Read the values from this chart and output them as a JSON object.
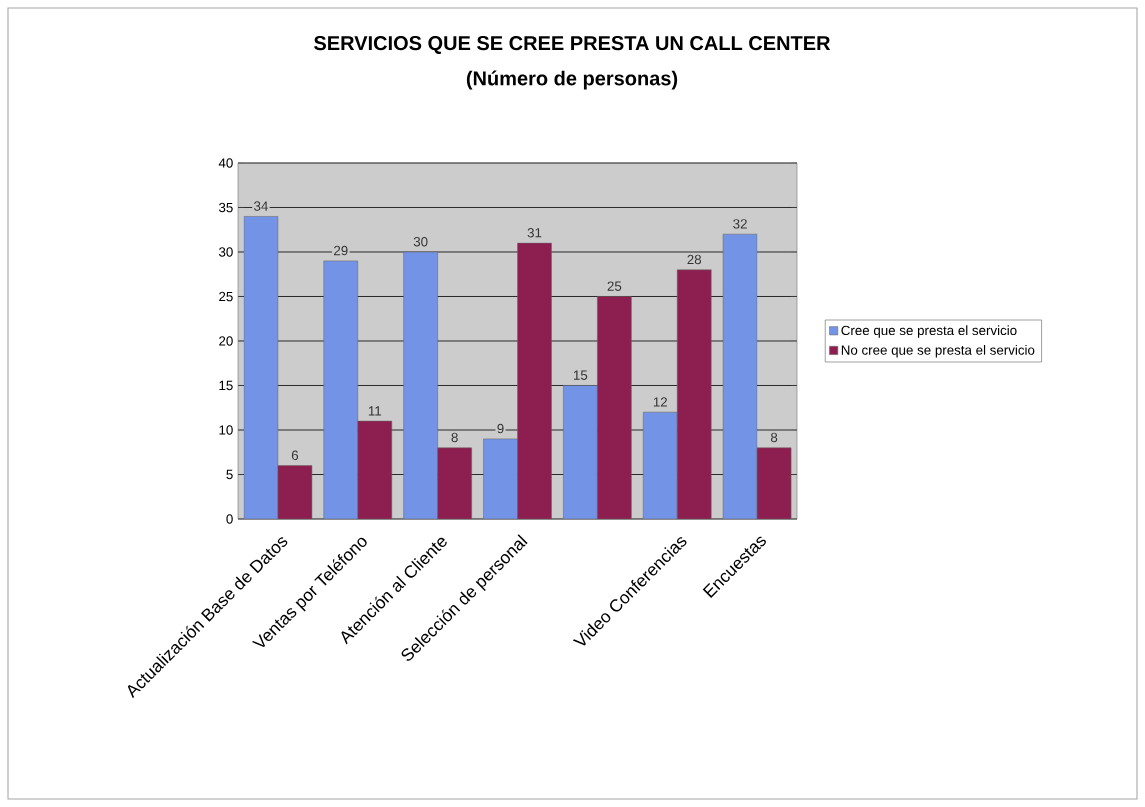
{
  "chart_data": {
    "type": "bar",
    "title": "SERVICIOS QUE SE CREE PRESTA UN CALL CENTER",
    "subtitle": "(Número de personas)",
    "categories": [
      "Actualización Base de Datos",
      "Ventas por Teléfono",
      "Atención al Cliente",
      "Selección de personal",
      null,
      "Video Conferencias",
      "Encuestas"
    ],
    "series": [
      {
        "name": "Cree que se presta el servicio",
        "color": "#7393e6",
        "values": [
          34,
          29,
          30,
          9,
          15,
          12,
          32
        ]
      },
      {
        "name": "No cree que se presta el servicio",
        "color": "#8c1f4f",
        "values": [
          6,
          11,
          8,
          31,
          25,
          28,
          8
        ]
      }
    ],
    "ylim": [
      0,
      40
    ],
    "yticks": [
      0,
      5,
      10,
      15,
      20,
      25,
      30,
      35,
      40
    ],
    "grid": "y",
    "legend": "right",
    "data_labels": true
  }
}
